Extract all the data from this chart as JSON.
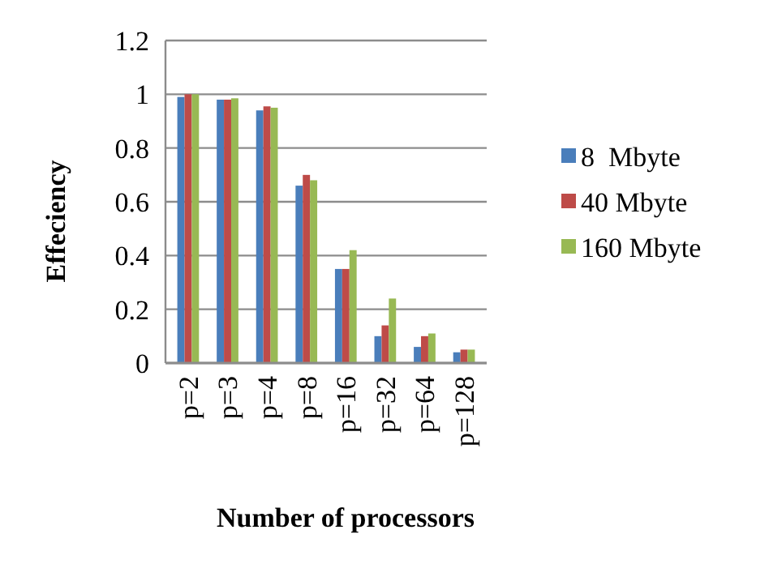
{
  "chart_data": {
    "type": "bar",
    "xlabel": "Number of processors",
    "ylabel": "Effeciency",
    "categories": [
      "p=2",
      "p=3",
      "p=4",
      "p=8",
      "p=16",
      "p=32",
      "p=64",
      "p=128"
    ],
    "series": [
      {
        "name": "8  Mbyte",
        "color": "#4a7ebb",
        "values": [
          0.99,
          0.98,
          0.94,
          0.66,
          0.35,
          0.1,
          0.06,
          0.04
        ]
      },
      {
        "name": "40 Mbyte",
        "color": "#be4b48",
        "values": [
          1.0,
          0.98,
          0.955,
          0.7,
          0.35,
          0.14,
          0.1,
          0.05
        ]
      },
      {
        "name": "160 Mbyte",
        "color": "#98b954",
        "values": [
          1.0,
          0.985,
          0.95,
          0.68,
          0.42,
          0.24,
          0.11,
          0.05
        ]
      }
    ],
    "ylim": [
      0,
      1.2
    ],
    "yticks": [
      0,
      0.2,
      0.4,
      0.6,
      0.8,
      1,
      1.2
    ],
    "grid": "y",
    "legend": "right"
  }
}
